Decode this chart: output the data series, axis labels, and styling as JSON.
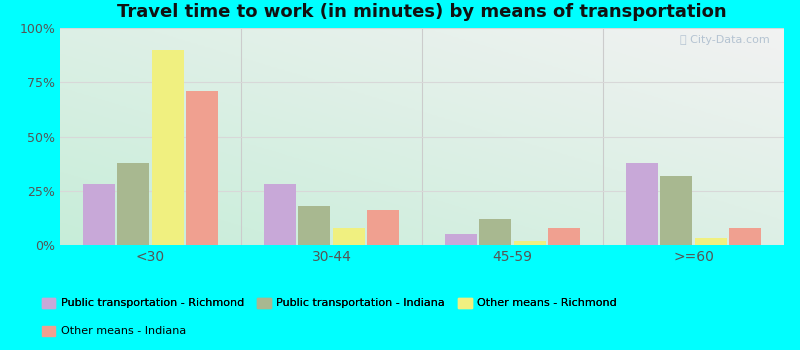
{
  "title": "Travel time to work (in minutes) by means of transportation",
  "categories": [
    "<30",
    "30-44",
    "45-59",
    ">=60"
  ],
  "series_order": [
    "Public transportation - Richmond",
    "Public transportation - Indiana",
    "Other means - Richmond",
    "Other means - Indiana"
  ],
  "series": {
    "Public transportation - Richmond": [
      28,
      28,
      5,
      38
    ],
    "Public transportation - Indiana": [
      38,
      18,
      12,
      32
    ],
    "Other means - Richmond": [
      90,
      8,
      2,
      3
    ],
    "Other means - Indiana": [
      71,
      16,
      8,
      8
    ]
  },
  "colors": {
    "Public transportation - Richmond": "#c8a8d8",
    "Public transportation - Indiana": "#a8b890",
    "Other means - Richmond": "#f0f080",
    "Other means - Indiana": "#f0a090"
  },
  "ylim": [
    0,
    100
  ],
  "yticks": [
    0,
    25,
    50,
    75,
    100
  ],
  "ytick_labels": [
    "0%",
    "25%",
    "50%",
    "75%",
    "100%"
  ],
  "outer_background": "#00ffff",
  "grid_color": "#d8d8d8",
  "title_fontsize": 13,
  "bar_width": 0.19,
  "figsize": [
    8.0,
    3.5
  ],
  "dpi": 100
}
